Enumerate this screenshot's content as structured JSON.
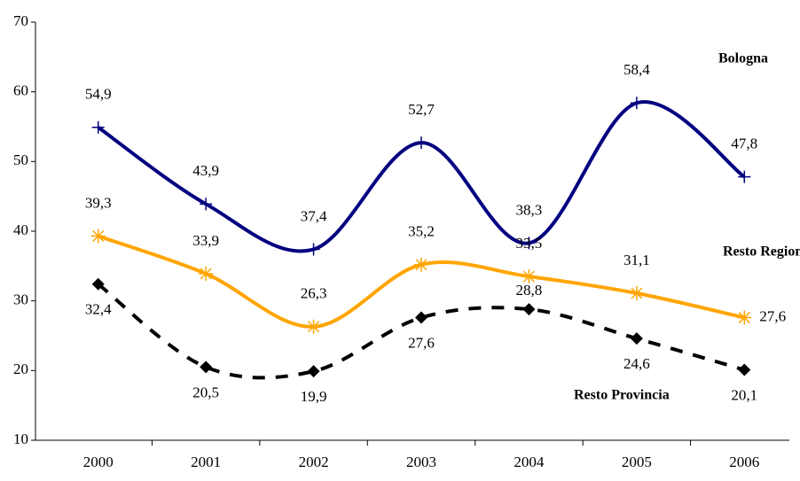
{
  "chart_data": {
    "type": "line",
    "categories": [
      "2000",
      "2001",
      "2002",
      "2003",
      "2004",
      "2005",
      "2006"
    ],
    "series": [
      {
        "name": "Bologna",
        "color": "#000080",
        "marker": "plus",
        "dashed": false,
        "values": [
          54.9,
          43.9,
          37.4,
          52.7,
          38.3,
          58.4,
          47.8
        ],
        "value_labels": [
          "54,9",
          "43,9",
          "37,4",
          "52,7",
          "38,3",
          "58,4",
          "47,8"
        ]
      },
      {
        "name": "Resto Regione",
        "color": "#FFA500",
        "marker": "asterisk",
        "dashed": false,
        "values": [
          39.3,
          33.9,
          26.3,
          35.2,
          33.5,
          31.1,
          27.6
        ],
        "value_labels": [
          "39,3",
          "33,9",
          "26,3",
          "35,2",
          "33,5",
          "31,1",
          "27,6"
        ]
      },
      {
        "name": "Resto Provincia",
        "color": "#000000",
        "marker": "diamond",
        "dashed": true,
        "values": [
          32.4,
          20.5,
          19.9,
          27.6,
          28.8,
          24.6,
          20.1
        ],
        "value_labels": [
          "32,4",
          "20,5",
          "19,9",
          "27,6",
          "28,8",
          "24,6",
          "20,1"
        ]
      }
    ],
    "ylim": [
      10,
      70
    ],
    "yticks": [
      10,
      20,
      30,
      40,
      50,
      60,
      70
    ],
    "grid": false,
    "smooth": true
  }
}
